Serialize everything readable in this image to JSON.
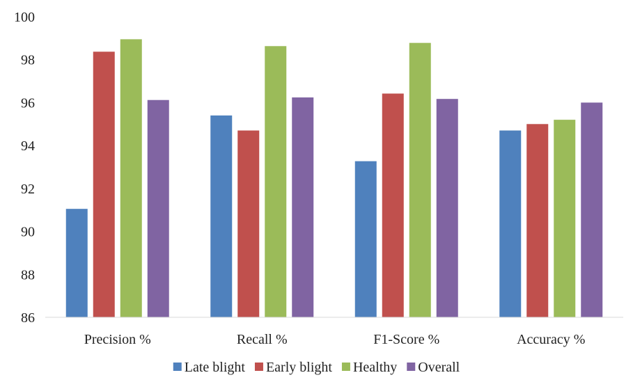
{
  "chart_data": {
    "type": "bar",
    "categories": [
      "Precision %",
      "Recall %",
      "F1-Score %",
      "Accuracy %"
    ],
    "series": [
      {
        "name": "Late blight",
        "color": "#4f81bd",
        "values": [
          91.05,
          95.4,
          93.27,
          94.7
        ]
      },
      {
        "name": "Early blight",
        "color": "#c0504d",
        "values": [
          98.37,
          94.7,
          96.42,
          95.0
        ]
      },
      {
        "name": "Healthy",
        "color": "#9bbb59",
        "values": [
          98.95,
          98.63,
          98.78,
          95.2
        ]
      },
      {
        "name": "Overall",
        "color": "#8064a2",
        "values": [
          96.12,
          96.24,
          96.17,
          96.0
        ]
      }
    ],
    "ylim": [
      86,
      100
    ],
    "yticks": [
      86,
      88,
      90,
      92,
      94,
      96,
      98,
      100
    ],
    "grid": false,
    "legend": "bottom"
  }
}
